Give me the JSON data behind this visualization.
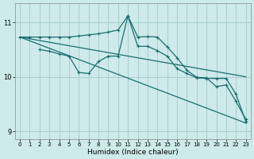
{
  "xlabel": "Humidex (Indice chaleur)",
  "bg_color": "#ceeaea",
  "grid_color": "#a8cece",
  "line_color": "#1a6e6e",
  "xlim": [
    -0.5,
    23.5
  ],
  "ylim": [
    8.85,
    11.35
  ],
  "yticks": [
    9,
    10,
    11
  ],
  "xticks": [
    0,
    1,
    2,
    3,
    4,
    5,
    6,
    7,
    8,
    9,
    10,
    11,
    12,
    13,
    14,
    15,
    16,
    17,
    18,
    19,
    20,
    21,
    22,
    23
  ],
  "series1": {
    "x": [
      0,
      1,
      2,
      3,
      4,
      5,
      6,
      7,
      8,
      9,
      10,
      11,
      12,
      13,
      14,
      15,
      16,
      17,
      18,
      19,
      20,
      21,
      22,
      23
    ],
    "y": [
      10.73,
      10.73,
      10.73,
      10.73,
      10.73,
      10.73,
      10.75,
      10.77,
      10.79,
      10.82,
      10.86,
      11.12,
      10.73,
      10.74,
      10.73,
      10.55,
      10.35,
      10.12,
      9.99,
      9.98,
      9.82,
      9.85,
      9.55,
      9.22
    ]
  },
  "series2": {
    "x": [
      2,
      3,
      4,
      5,
      6,
      7,
      8,
      9,
      10,
      11,
      12,
      13,
      14,
      15,
      16,
      17,
      18,
      19,
      20,
      21,
      22,
      23
    ],
    "y": [
      10.5,
      10.47,
      10.42,
      10.38,
      10.08,
      10.06,
      10.28,
      10.38,
      10.38,
      11.12,
      10.56,
      10.56,
      10.48,
      10.38,
      10.15,
      10.06,
      9.98,
      9.97,
      9.97,
      9.97,
      9.68,
      9.18
    ]
  },
  "series3": {
    "x": [
      0,
      23
    ],
    "y": [
      10.73,
      10.0
    ]
  },
  "series4": {
    "x": [
      0,
      23
    ],
    "y": [
      10.73,
      9.15
    ]
  }
}
